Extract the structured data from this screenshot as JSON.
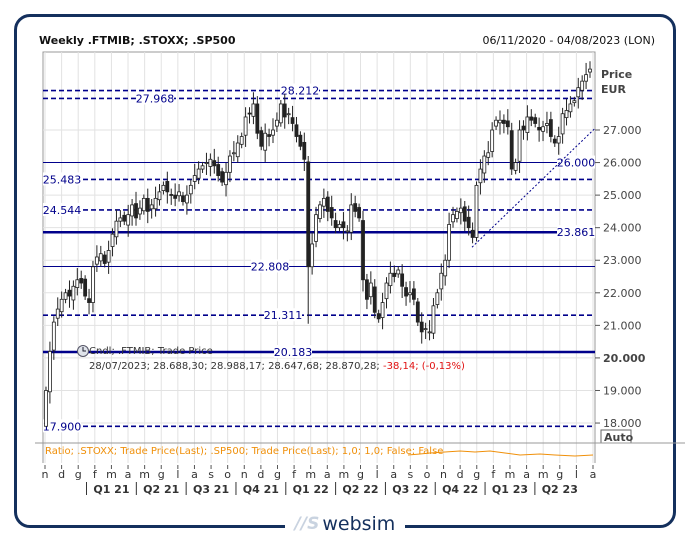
{
  "header": {
    "title": "Weekly .FTMIB; .STOXX; .SP500",
    "date_range": "06/11/2020 - 04/08/2023 (LON)"
  },
  "axis": {
    "title_line1": "Price",
    "title_line2": "EUR",
    "auto_button": "Auto"
  },
  "legend": {
    "series_label": "Cndl; .FTMIB; Trade Price",
    "values": "28/07/2023; 28.688,30; 28.988,17; 28.647,68; 28.870,28;",
    "change": "-38,14; (-0,13%)",
    "ratio_label": "Ratio; .STOXX; Trade Price(Last); .SP500; Trade Price(Last);  1,0; 1,0; False; False"
  },
  "colors": {
    "line": "#00008b",
    "up": "#ffffff",
    "down": "#222222",
    "ratio": "#f0900a",
    "negative": "#e01010",
    "frame": "#14305d"
  },
  "logo": {
    "mark": "WS",
    "text": "websim"
  },
  "chart_data": {
    "type": "candlestick",
    "ylim": [
      17500,
      29300
    ],
    "yticks": [
      {
        "v": 27000,
        "label": "27.000"
      },
      {
        "v": 26000,
        "label": "26.000"
      },
      {
        "v": 25000,
        "label": "25.000"
      },
      {
        "v": 24000,
        "label": "24.000"
      },
      {
        "v": 23000,
        "label": "23.000"
      },
      {
        "v": 22000,
        "label": "22.000"
      },
      {
        "v": 21000,
        "label": "21.000"
      },
      {
        "v": 20000,
        "label": "20.000"
      },
      {
        "v": 19000,
        "label": "19.000"
      },
      {
        "v": 18000,
        "label": "18.000"
      }
    ],
    "months": [
      "n",
      "d",
      "g",
      "f",
      "m",
      "a",
      "m",
      "g",
      "l",
      "a",
      "s",
      "o",
      "n",
      "d",
      "g",
      "f",
      "m",
      "a",
      "m",
      "g",
      "l",
      "a",
      "s",
      "o",
      "n",
      "d",
      "g",
      "f",
      "m",
      "a",
      "m",
      "g",
      "l",
      "a"
    ],
    "quarters": [
      "Q1 21",
      "Q2 21",
      "Q3 21",
      "Q4 21",
      "Q1 22",
      "Q2 22",
      "Q3 22",
      "Q4 22",
      "Q1 23",
      "Q2 23"
    ],
    "weekly_close": [
      19000,
      20200,
      21100,
      21500,
      21800,
      22000,
      21900,
      22200,
      22400,
      22300,
      21900,
      21700,
      22800,
      23100,
      23200,
      22900,
      23300,
      23800,
      24200,
      24300,
      24200,
      24400,
      24700,
      24300,
      24600,
      24900,
      24500,
      24700,
      24900,
      25100,
      25300,
      25100,
      25000,
      24900,
      25100,
      24800,
      25000,
      25300,
      25600,
      25800,
      25900,
      26000,
      26100,
      25900,
      25600,
      25400,
      25700,
      26200,
      26300,
      26600,
      26800,
      27400,
      27500,
      27800,
      26900,
      26500,
      26900,
      26800,
      27000,
      27300,
      27800,
      27400,
      27500,
      27200,
      26800,
      26500,
      26100,
      22800,
      23500,
      24400,
      24700,
      24900,
      24500,
      24300,
      24000,
      24100,
      24000,
      23900,
      24700,
      24500,
      24300,
      22400,
      21800,
      22300,
      21400,
      21200,
      21700,
      22300,
      22600,
      22500,
      22700,
      22200,
      21900,
      22000,
      21800,
      21100,
      20800,
      20900,
      20800,
      21600,
      22000,
      22600,
      23000,
      24100,
      24400,
      24500,
      24600,
      24200,
      24000,
      23700,
      25300,
      25800,
      26200,
      26300,
      27000,
      27300,
      27300,
      27200,
      27100,
      25800,
      26000,
      27000,
      27000,
      27400,
      27300,
      27200,
      27000,
      27100,
      27200,
      26800,
      26600,
      26800,
      27500,
      27600,
      27800,
      27900,
      28300,
      28500,
      28700,
      28870
    ],
    "levels": [
      {
        "value": 28212,
        "label": "28.212",
        "style": "dashed"
      },
      {
        "value": 27968,
        "label": "27.968",
        "style": "dashed"
      },
      {
        "value": 26000,
        "label": "26.000",
        "style": "thin"
      },
      {
        "value": 25483,
        "label": "25.483",
        "style": "dashed"
      },
      {
        "value": 24544,
        "label": "24.544",
        "style": "dashed"
      },
      {
        "value": 23861,
        "label": "23.861",
        "style": "thick"
      },
      {
        "value": 22808,
        "label": "22.808",
        "style": "thin"
      },
      {
        "value": 21311,
        "label": "21.311",
        "style": "dashed"
      },
      {
        "value": 20183,
        "label": "20.183",
        "style": "thick"
      },
      {
        "value": 17900,
        "label": "17.900",
        "style": "dashed"
      }
    ],
    "trendline": {
      "from": 23400,
      "to": 27050
    }
  }
}
